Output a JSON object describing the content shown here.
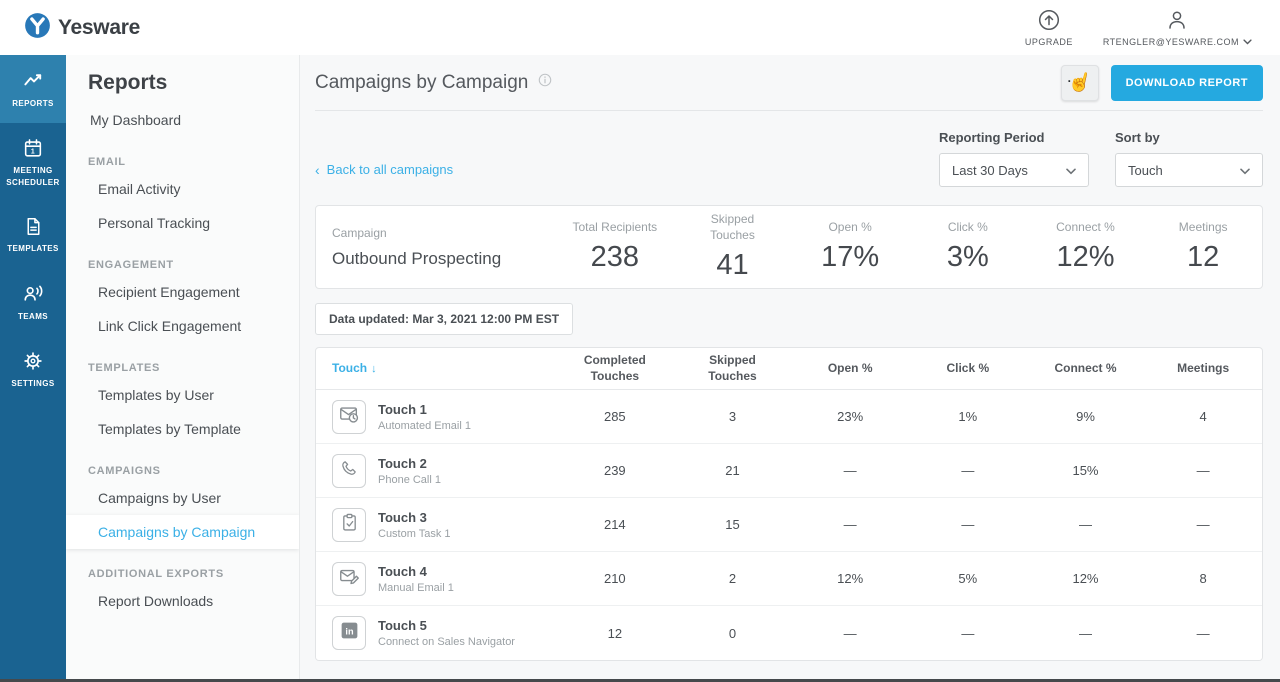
{
  "topbar": {
    "brand": "Yesware",
    "upgrade_label": "UPGRADE",
    "account_label": "RTENGLER@YESWARE.COM"
  },
  "sidebar": {
    "items": [
      {
        "label": "REPORTS",
        "icon": "reports",
        "active": true
      },
      {
        "label": "MEETING SCHEDULER",
        "icon": "calendar",
        "active": false
      },
      {
        "label": "TEMPLATES",
        "icon": "templates",
        "active": false
      },
      {
        "label": "TEAMS",
        "icon": "teams",
        "active": false
      },
      {
        "label": "SETTINGS",
        "icon": "settings",
        "active": false
      }
    ]
  },
  "nav": {
    "title": "Reports",
    "active_item": "Campaigns by Campaign",
    "groups": [
      {
        "header": "",
        "items": [
          "My Dashboard"
        ]
      },
      {
        "header": "EMAIL",
        "items": [
          "Email Activity",
          "Personal Tracking"
        ]
      },
      {
        "header": "ENGAGEMENT",
        "items": [
          "Recipient Engagement",
          "Link Click Engagement"
        ]
      },
      {
        "header": "TEMPLATES",
        "items": [
          "Templates by User",
          "Templates by Template"
        ]
      },
      {
        "header": "CAMPAIGNS",
        "items": [
          "Campaigns by User",
          "Campaigns by Campaign"
        ]
      },
      {
        "header": "ADDITIONAL EXPORTS",
        "items": [
          "Report Downloads"
        ]
      }
    ]
  },
  "main": {
    "title": "Campaigns by Campaign",
    "download_button": "DOWNLOAD REPORT",
    "back_link": "Back to all campaigns",
    "reporting_period": {
      "label": "Reporting Period",
      "value": "Last 30 Days"
    },
    "sort_by": {
      "label": "Sort by",
      "value": "Touch"
    },
    "summary": {
      "campaign_label": "Campaign",
      "campaign_name": "Outbound Prospecting",
      "stats": [
        {
          "label": "Total Recipients",
          "value": "238"
        },
        {
          "label": "Skipped Touches",
          "value": "41"
        },
        {
          "label": "Open %",
          "value": "17%"
        },
        {
          "label": "Click %",
          "value": "3%"
        },
        {
          "label": "Connect %",
          "value": "12%"
        },
        {
          "label": "Meetings",
          "value": "12"
        }
      ]
    },
    "data_updated": "Data updated: Mar 3, 2021 12:00 PM EST",
    "table": {
      "columns": [
        "Touch",
        "Completed Touches",
        "Skipped Touches",
        "Open %",
        "Click %",
        "Connect %",
        "Meetings"
      ],
      "sort_column": "Touch",
      "sort_arrow": "↓",
      "rows": [
        {
          "touch": "Touch 1",
          "type": "Automated Email 1",
          "icon": "automated-email",
          "completed": "285",
          "skipped": "3",
          "open": "23%",
          "click": "1%",
          "connect": "9%",
          "meetings": "4"
        },
        {
          "touch": "Touch 2",
          "type": "Phone Call 1",
          "icon": "phone",
          "completed": "239",
          "skipped": "21",
          "open": "—",
          "click": "—",
          "connect": "15%",
          "meetings": "—"
        },
        {
          "touch": "Touch 3",
          "type": "Custom Task 1",
          "icon": "task",
          "completed": "214",
          "skipped": "15",
          "open": "—",
          "click": "—",
          "connect": "—",
          "meetings": "—"
        },
        {
          "touch": "Touch 4",
          "type": "Manual Email 1",
          "icon": "manual-email",
          "completed": "210",
          "skipped": "2",
          "open": "12%",
          "click": "5%",
          "connect": "12%",
          "meetings": "8"
        },
        {
          "touch": "Touch 5",
          "type": "Connect on Sales Navigator",
          "icon": "linkedin",
          "completed": "12",
          "skipped": "0",
          "open": "—",
          "click": "—",
          "connect": "—",
          "meetings": "—"
        }
      ]
    }
  },
  "colors": {
    "accent_button": "#25a9e0",
    "link_blue": "#3bb0e6",
    "sidebar": "#1a6391",
    "sidebar_active": "#2e81ae",
    "content_bg": "#f7f8f9"
  }
}
